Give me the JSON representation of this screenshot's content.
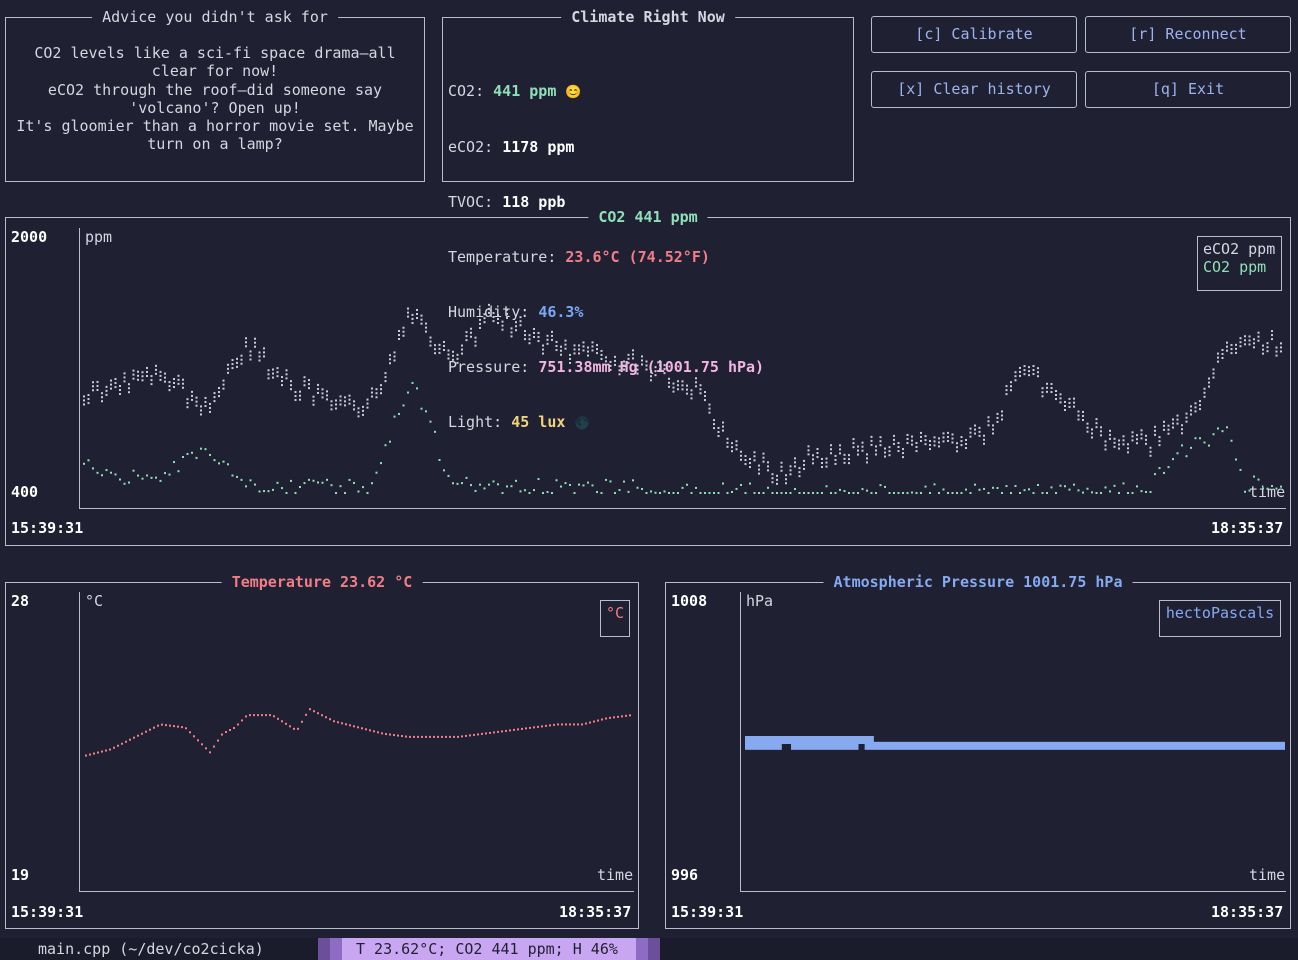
{
  "advice": {
    "title": "Advice you didn't ask for",
    "lines": [
      "CO2 levels like a sci-fi space drama—all",
      "clear for now!",
      "eCO2 through the roof—did someone say",
      "'volcano'? Open up!",
      "It's gloomier than a horror movie set. Maybe",
      "turn on a lamp?"
    ]
  },
  "climate": {
    "title": "Climate Right Now",
    "co2_label": "CO2: ",
    "co2_value": "441 ppm",
    "co2_emoji": "😊",
    "eco2_label": "eCO2: ",
    "eco2_value": "1178 ppm",
    "tvoc_label": "TVOC: ",
    "tvoc_value": "118 ppb",
    "temp_label": "Temperature: ",
    "temp_value": "23.6°C (74.52°F)",
    "hum_label": "Humidity: ",
    "hum_value": "46.3%",
    "pres_label": "Pressure: ",
    "pres_value": "751.38mm Hg (1001.75 hPa)",
    "light_label": "Light: ",
    "light_value": "45 lux",
    "light_emoji": "🌑"
  },
  "buttons": {
    "calibrate": "[c] Calibrate",
    "reconnect": "[r] Reconnect",
    "clear": "[x] Clear history",
    "exit": "[q] Exit"
  },
  "co2_chart": {
    "title": "CO2 441 ppm",
    "y_max": "2000",
    "y_min": "400",
    "y_unit": "ppm",
    "x_label": "time",
    "x_start": "15:39:31",
    "x_end": "18:35:37",
    "legend": [
      "eCO2 ppm",
      "CO2 ppm"
    ]
  },
  "temp_chart": {
    "title": "Temperature 23.62 °C",
    "y_max": "28",
    "y_min": "19",
    "y_unit": "°C",
    "x_label": "time",
    "x_start": "15:39:31",
    "x_end": "18:35:37",
    "legend": "°C"
  },
  "pres_chart": {
    "title": "Atmospheric Pressure 1001.75 hPa",
    "y_max": "1008",
    "y_min": "996",
    "y_unit": "hPa",
    "x_label": "time",
    "x_start": "15:39:31",
    "x_end": "18:35:37",
    "legend": "hectoPascals"
  },
  "statusbar": {
    "file": "main.cpp (~/dev/co2cicka)",
    "summary": "T 23.62°C; CO2 441 ppm; H 46%"
  },
  "colors": {
    "background": "#1f2132",
    "border": "#b9bccb",
    "eco2": "#c9cbd6",
    "co2": "#8fe0b8",
    "temperature": "#f27d87",
    "pressure": "#86a9f0",
    "button_text": "#9db3ef",
    "status_accent": "#c9a6f2"
  },
  "chart_data": [
    {
      "type": "scatter",
      "title": "CO2 441 ppm",
      "ylabel": "ppm",
      "xlabel": "time",
      "ylim": [
        400,
        2000
      ],
      "x_range": [
        "15:39:31",
        "18:35:37"
      ],
      "legend_position": "top-right",
      "series": [
        {
          "name": "eCO2 ppm",
          "x_minutes": [
            0,
            6,
            12,
            18,
            24,
            30,
            36,
            42,
            48,
            54,
            60,
            66,
            72,
            78,
            84,
            90,
            96,
            102,
            108,
            114,
            120,
            126,
            132,
            138,
            144,
            150,
            156,
            162,
            168,
            170,
            176
          ],
          "values": [
            1000,
            1050,
            1100,
            900,
            1300,
            1050,
            950,
            930,
            1500,
            1200,
            1500,
            1350,
            1250,
            1200,
            1150,
            1000,
            600,
            500,
            620,
            640,
            660,
            680,
            720,
            1150,
            940,
            700,
            680,
            820,
            1300,
            1300,
            1300
          ]
        },
        {
          "name": "CO2 ppm",
          "x_minutes": [
            0,
            6,
            12,
            18,
            24,
            30,
            36,
            42,
            48,
            54,
            60,
            66,
            72,
            78,
            84,
            90,
            96,
            102,
            108,
            114,
            120,
            126,
            132,
            138,
            144,
            150,
            156,
            162,
            168,
            170,
            176
          ],
          "values": [
            550,
            500,
            520,
            700,
            470,
            430,
            430,
            430,
            1100,
            450,
            430,
            430,
            430,
            430,
            410,
            400,
            400,
            400,
            400,
            400,
            400,
            400,
            400,
            400,
            400,
            400,
            430,
            700,
            800,
            450,
            480
          ]
        }
      ]
    },
    {
      "type": "scatter",
      "title": "Temperature 23.62 °C",
      "ylabel": "°C",
      "xlabel": "time",
      "ylim": [
        19,
        28
      ],
      "x_range": [
        "15:39:31",
        "18:35:37"
      ],
      "legend_position": "top-right",
      "series": [
        {
          "name": "°C",
          "x_minutes": [
            0,
            8,
            16,
            24,
            32,
            40,
            44,
            48,
            52,
            60,
            68,
            72,
            80,
            84,
            88,
            96,
            104,
            112,
            120,
            128,
            136,
            144,
            152,
            160,
            168,
            176
          ],
          "values": [
            23.0,
            23.2,
            23.6,
            24.0,
            23.9,
            23.1,
            23.7,
            23.9,
            24.3,
            24.3,
            23.8,
            24.5,
            24.1,
            24.0,
            23.9,
            23.7,
            23.6,
            23.6,
            23.6,
            23.7,
            23.8,
            23.9,
            24.0,
            24.0,
            24.2,
            24.3
          ]
        }
      ]
    },
    {
      "type": "bar",
      "title": "Atmospheric Pressure 1001.75 hPa",
      "ylabel": "hPa",
      "xlabel": "time",
      "ylim": [
        996,
        1008
      ],
      "x_range": [
        "15:39:31",
        "18:35:37"
      ],
      "legend_position": "top-right",
      "series": [
        {
          "name": "hectoPascals",
          "segments": [
            {
              "x_start_min": 0,
              "x_end_min": 42,
              "value": 1002.0
            },
            {
              "x_start_min": 0,
              "x_end_min": 12,
              "value": 1001.75
            },
            {
              "x_start_min": 15,
              "x_end_min": 37,
              "value": 1001.75
            },
            {
              "x_start_min": 39,
              "x_end_min": 176,
              "value": 1001.75
            }
          ]
        }
      ]
    }
  ]
}
